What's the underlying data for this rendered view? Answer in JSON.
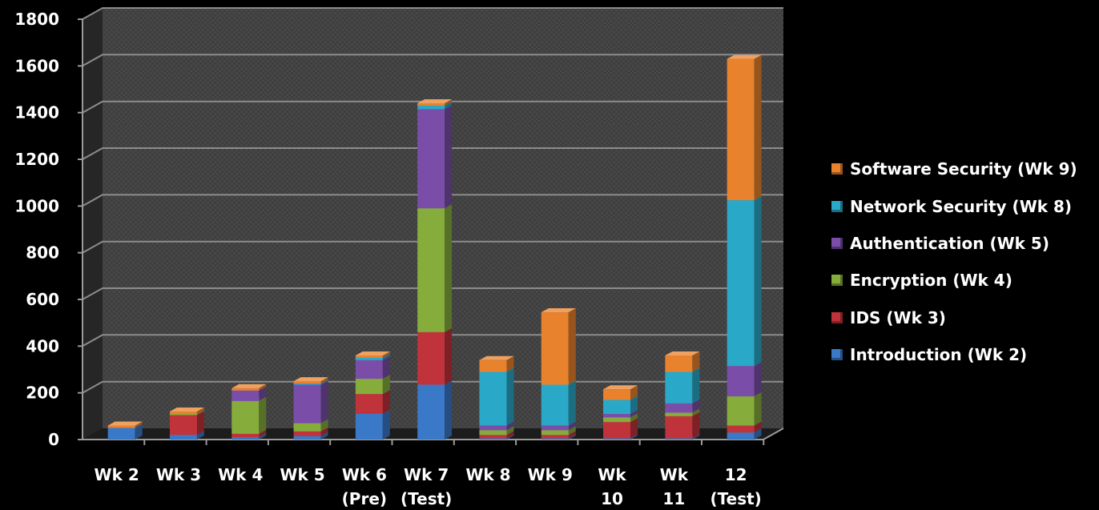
{
  "chart_data": {
    "type": "bar",
    "stacked": true,
    "style": "3d",
    "categories": [
      [
        "Wk 2"
      ],
      [
        "Wk 3"
      ],
      [
        "Wk 4"
      ],
      [
        "Wk 5"
      ],
      [
        "Wk 6",
        "(Pre)"
      ],
      [
        "Wk 7",
        "(Test)"
      ],
      [
        "Wk 8"
      ],
      [
        "Wk 9"
      ],
      [
        "Wk",
        "10"
      ],
      [
        "Wk",
        "11"
      ],
      [
        "12",
        "(Test)"
      ]
    ],
    "series": [
      {
        "name": "Introduction (Wk 2)",
        "color": "#3a78c8",
        "values": [
          50,
          20,
          10,
          15,
          110,
          235,
          5,
          5,
          5,
          5,
          30
        ]
      },
      {
        "name": "IDS (Wk 3)",
        "color": "#c0333a",
        "values": [
          0,
          85,
          15,
          20,
          85,
          225,
          15,
          15,
          70,
          95,
          30
        ]
      },
      {
        "name": "Encryption (Wk 4)",
        "color": "#86ac3c",
        "values": [
          0,
          5,
          140,
          35,
          65,
          530,
          20,
          20,
          20,
          15,
          125
        ]
      },
      {
        "name": "Authentication (Wk 5)",
        "color": "#7a4ea8",
        "values": [
          0,
          0,
          45,
          165,
          80,
          425,
          20,
          20,
          15,
          40,
          130
        ]
      },
      {
        "name": "Network Security (Wk 8)",
        "color": "#2aa8c8",
        "values": [
          0,
          0,
          0,
          5,
          10,
          15,
          230,
          175,
          60,
          135,
          710
        ]
      },
      {
        "name": "Software Security (Wk 9)",
        "color": "#e8822c",
        "values": [
          10,
          10,
          10,
          10,
          10,
          10,
          50,
          310,
          45,
          70,
          605
        ]
      }
    ],
    "yticks": [
      0,
      200,
      400,
      600,
      800,
      1000,
      1200,
      1400,
      1600,
      1800
    ],
    "ylim": [
      0,
      1800
    ],
    "grid": true,
    "legend_position": "right"
  }
}
